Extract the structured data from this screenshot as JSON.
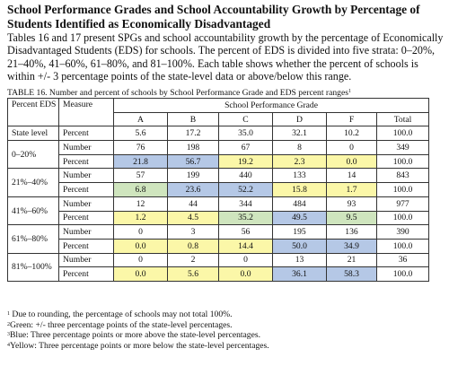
{
  "heading": "School Performance Grades and School Accountability Growth by Percentage of Students Identified as Economically Disadvantaged",
  "intro": "Tables 16 and 17 present SPGs and school accountability growth by the percentage of Economically Disadvantaged Students (EDS) for schools. The percent of EDS is divided into five strata: 0–20%, 21–40%, 41–60%, 61–80%, and 81–100%. Each table shows whether the percent of schools is within +/- 3 percentage points of the state-level data or above/below this range.",
  "caption": "TABLE 16. Number and percent of schools by School Performance Grade and EDS percent ranges",
  "caption_sup": "1",
  "table": {
    "col_percent_eds": "Percent EDS",
    "col_measure": "Measure",
    "col_group": "School Performance Grade",
    "grades": [
      "A",
      "B",
      "C",
      "D",
      "F",
      "Total"
    ],
    "state": {
      "label": "State level",
      "measure": "Percent",
      "values": [
        "5.6",
        "17.2",
        "35.0",
        "32.1",
        "10.2",
        "100.0"
      ]
    },
    "strata": [
      {
        "label": "0–20%",
        "number_label": "Number",
        "numbers": [
          "76",
          "198",
          "67",
          "8",
          "0",
          "349"
        ],
        "percent_label": "Percent",
        "percents": [
          "21.8",
          "56.7",
          "19.2",
          "2.3",
          "0.0",
          "100.0"
        ],
        "percent_status": [
          "blue",
          "blue",
          "yellow",
          "yellow",
          "yellow",
          "none"
        ]
      },
      {
        "label": "21%–40%",
        "number_label": "Number",
        "numbers": [
          "57",
          "199",
          "440",
          "133",
          "14",
          "843"
        ],
        "percent_label": "Percent",
        "percents": [
          "6.8",
          "23.6",
          "52.2",
          "15.8",
          "1.7",
          "100.0"
        ],
        "percent_status": [
          "green",
          "blue",
          "blue",
          "yellow",
          "yellow",
          "none"
        ]
      },
      {
        "label": "41%–60%",
        "number_label": "Number",
        "numbers": [
          "12",
          "44",
          "344",
          "484",
          "93",
          "977"
        ],
        "percent_label": "Percent",
        "percents": [
          "1.2",
          "4.5",
          "35.2",
          "49.5",
          "9.5",
          "100.0"
        ],
        "percent_status": [
          "yellow",
          "yellow",
          "green",
          "blue",
          "green",
          "none"
        ]
      },
      {
        "label": "61%–80%",
        "number_label": "Number",
        "numbers": [
          "0",
          "3",
          "56",
          "195",
          "136",
          "390"
        ],
        "percent_label": "Percent",
        "percents": [
          "0.0",
          "0.8",
          "14.4",
          "50.0",
          "34.9",
          "100.0"
        ],
        "percent_status": [
          "yellow",
          "yellow",
          "yellow",
          "blue",
          "blue",
          "none"
        ]
      },
      {
        "label": "81%–100%",
        "number_label": "Number",
        "numbers": [
          "0",
          "2",
          "0",
          "13",
          "21",
          "36"
        ],
        "percent_label": "Percent",
        "percents": [
          "0.0",
          "5.6",
          "0.0",
          "36.1",
          "58.3",
          "100.0"
        ],
        "percent_status": [
          "yellow",
          "yellow",
          "yellow",
          "blue",
          "blue",
          "none"
        ]
      }
    ]
  },
  "colors": {
    "green": "#cfe5be",
    "blue": "#b5c8e6",
    "yellow": "#fbf7a8",
    "none": "#ffffff"
  },
  "notes": [
    {
      "sup": "1",
      "text": "Due to rounding, the percentage of schools may not total 100%."
    },
    {
      "sup": "2",
      "text": "Green: +/- three percentage points of the state-level percentages."
    },
    {
      "sup": "3",
      "text": "Blue: Three percentage points or more above the state-level percentages."
    },
    {
      "sup": "4",
      "text": "Yellow: Three percentage points or more below the state-level percentages."
    }
  ]
}
